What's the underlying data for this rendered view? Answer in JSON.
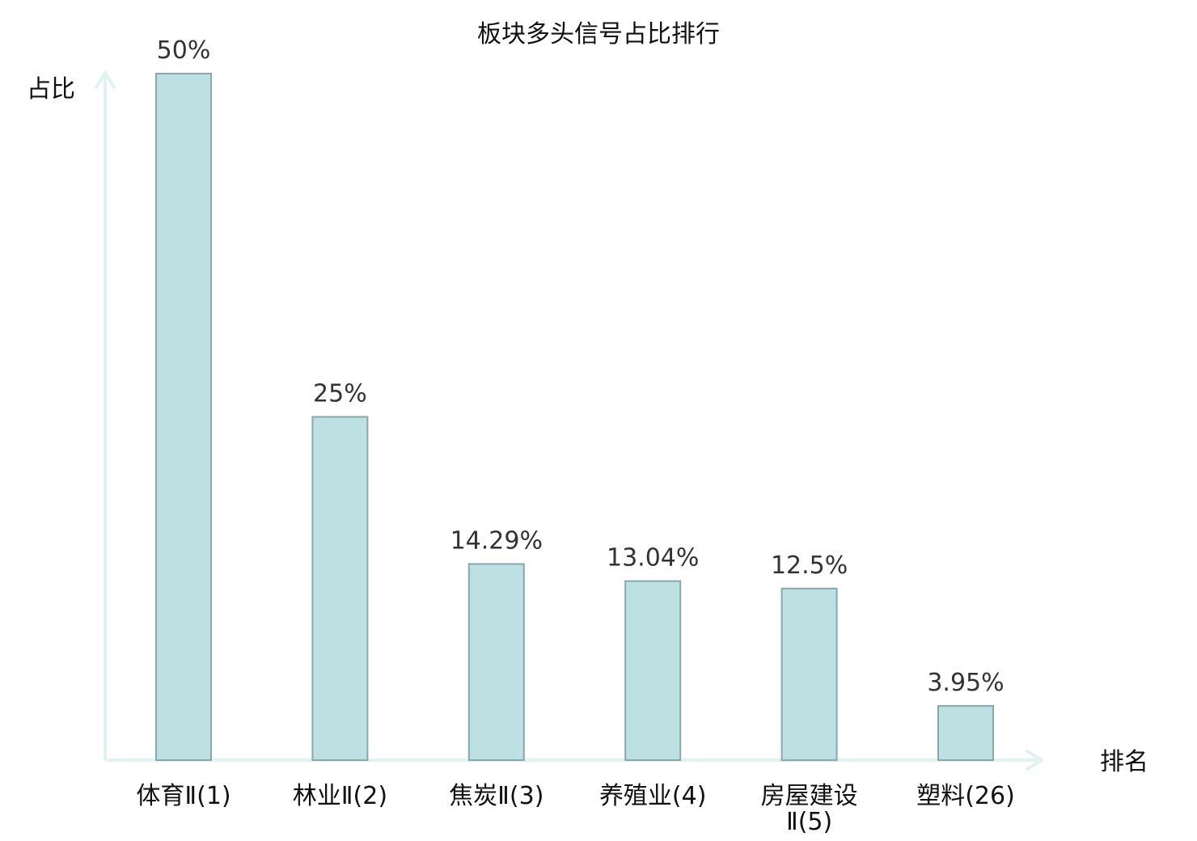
{
  "chart_data": {
    "type": "bar",
    "title": "板块多头信号占比排行",
    "ylabel": "占比",
    "xlabel": "排名",
    "categories": [
      [
        "体育Ⅱ(1)"
      ],
      [
        "林业Ⅱ(2)"
      ],
      [
        "焦炭Ⅱ(3)"
      ],
      [
        "养殖业(4)"
      ],
      [
        "房屋建设",
        "Ⅱ(5)"
      ],
      [
        "塑料(26)"
      ]
    ],
    "values": [
      50,
      25,
      14.29,
      13.04,
      12.5,
      3.95
    ],
    "value_labels": [
      "50%",
      "25%",
      "14.29%",
      "13.04%",
      "12.5%",
      "3.95%"
    ],
    "highlight_index": 5,
    "ylim": [
      0,
      50
    ],
    "grid": false,
    "colors": {
      "bar_fill": "#bde0e3",
      "bar_stroke": "#8aa7ab",
      "axis": "#e0f3f0",
      "highlight_label": "#e00000",
      "label": "#111111",
      "value_label": "#333333"
    }
  }
}
